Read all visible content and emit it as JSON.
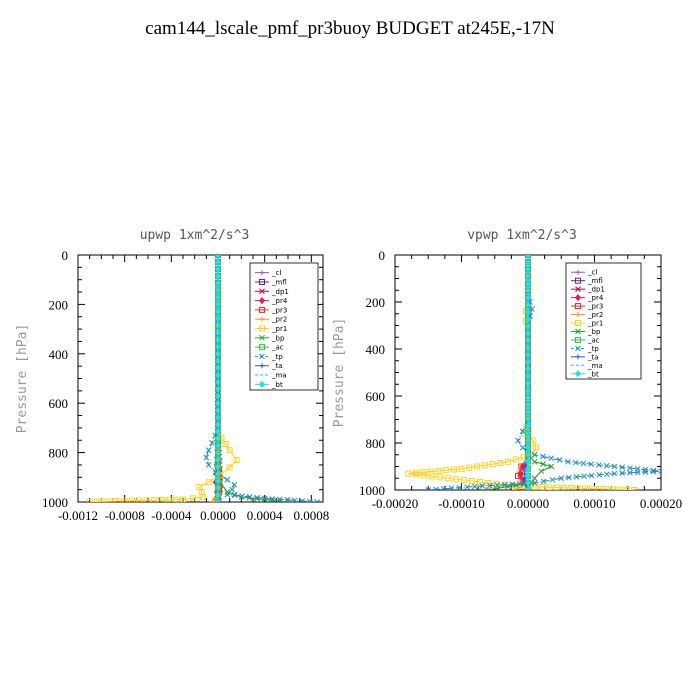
{
  "page": {
    "title": "cam144_lscale_pmf_pr3buoy  BUDGET at245E,-17N"
  },
  "chart_data": [
    {
      "type": "line",
      "title": "upwp   1xm^2/s^3",
      "ylabel": "Pressure [hPa]",
      "xlabel": "",
      "xlim": [
        -0.0012,
        0.0009
      ],
      "ylim": [
        1000,
        0
      ],
      "xticks": [
        -0.0012,
        -0.0008,
        -0.0004,
        0.0,
        0.0004,
        0.0008
      ],
      "xtick_labels": [
        "-0.0012",
        "-0.0008",
        "-0.0004",
        "0.0000",
        "0.0004",
        "0.0008"
      ],
      "yticks": [
        0,
        200,
        400,
        600,
        800,
        1000
      ],
      "ytick_labels": [
        "0",
        "200",
        "400",
        "600",
        "800",
        "1000"
      ],
      "legend_position": "top-right",
      "series": [
        {
          "name": "_cl",
          "color": "#9b4fc7",
          "marker": "+",
          "dash": "",
          "pressure": [
            0,
            1000
          ],
          "values": [
            0,
            0
          ]
        },
        {
          "name": "_mfl",
          "color": "#6b1f7f",
          "marker": "s",
          "dash": "",
          "pressure": [
            0,
            1000
          ],
          "values": [
            0,
            0
          ]
        },
        {
          "name": "_dp1",
          "color": "#c0004a",
          "marker": "x",
          "dash": "",
          "pressure": [
            0,
            700,
            800,
            900,
            950,
            980,
            1000
          ],
          "values": [
            0,
            0,
            1e-05,
            2e-05,
            2e-05,
            1e-05,
            0
          ]
        },
        {
          "name": "_pr4",
          "color": "#e0204a",
          "marker": "d",
          "dash": "",
          "pressure": [
            0,
            700,
            850,
            920,
            960,
            1000
          ],
          "values": [
            0,
            0,
            -1e-05,
            -2e-05,
            -1e-05,
            0
          ]
        },
        {
          "name": "_pr3",
          "color": "#ff2020",
          "marker": "s",
          "dash": "",
          "pressure": [
            0,
            800,
            900,
            960,
            1000
          ],
          "values": [
            0,
            0,
            1e-05,
            1e-05,
            0
          ]
        },
        {
          "name": "_pr2",
          "color": "#ff8c1a",
          "marker": "+",
          "dash": "",
          "pressure": [
            0,
            960,
            985,
            1000
          ],
          "values": [
            0,
            0,
            -3e-05,
            -5e-05
          ]
        },
        {
          "name": "_pr1",
          "color": "#ffd21f",
          "marker": "s",
          "dash": "",
          "pressure": [
            0,
            700,
            740,
            790,
            830,
            860,
            890,
            920,
            940,
            960,
            980,
            990,
            995,
            1000
          ],
          "values": [
            0,
            0,
            3e-05,
            0.0001,
            0.00016,
            0.0001,
            2e-05,
            -8e-05,
            -0.00016,
            -0.00014,
            -0.00013,
            -0.0003,
            -0.0008,
            -0.0011
          ]
        },
        {
          "name": "_bp",
          "color": "#2ca02c",
          "marker": "x",
          "dash": "",
          "pressure": [
            0,
            800,
            850,
            880,
            920,
            960,
            980,
            990,
            1000
          ],
          "values": [
            0,
            0,
            -1e-05,
            -2e-05,
            2e-05,
            8e-05,
            0.0002,
            0.0004,
            0.0006
          ]
        },
        {
          "name": "_ac",
          "color": "#36c236",
          "marker": "s",
          "dash": "",
          "pressure": [
            0,
            1000
          ],
          "values": [
            0,
            0
          ]
        },
        {
          "name": "_tp",
          "color": "#1f8fbf",
          "marker": "x",
          "dash": "6,2,1,2",
          "pressure": [
            0,
            700,
            760,
            790,
            820,
            850,
            880,
            910,
            930,
            950,
            970,
            985,
            1000
          ],
          "values": [
            0,
            0,
            -5e-05,
            -8e-05,
            -0.0001,
            -8e-05,
            -2e-05,
            8e-05,
            0.00014,
            0.00012,
            8e-05,
            0.0004,
            0.00085
          ]
        },
        {
          "name": "_ta",
          "color": "#3050e0",
          "marker": "+",
          "dash": "",
          "pressure": [
            0,
            1000
          ],
          "values": [
            0,
            0
          ]
        },
        {
          "name": "_ma",
          "color": "#3ab0ff",
          "marker": "",
          "dash": "4,3",
          "pressure": [
            0,
            1000
          ],
          "values": [
            0,
            0
          ]
        },
        {
          "name": "_bt",
          "color": "#20e0f0",
          "marker": "d",
          "dash": "",
          "pressure": [
            0,
            1000
          ],
          "values": [
            0,
            0
          ]
        }
      ]
    },
    {
      "type": "line",
      "title": "vpwp   1xm^2/s^3",
      "ylabel": "Pressure [hPa]",
      "xlabel": "",
      "xlim": [
        -0.0002,
        0.0002
      ],
      "ylim": [
        1000,
        0
      ],
      "xticks": [
        -0.0002,
        -0.0001,
        0.0,
        0.0001,
        0.0002
      ],
      "xtick_labels": [
        "-0.00020",
        "-0.00010",
        "0.00000",
        "0.00010",
        "0.00020"
      ],
      "yticks": [
        0,
        200,
        400,
        600,
        800,
        1000
      ],
      "ytick_labels": [
        "0",
        "200",
        "400",
        "600",
        "800",
        "1000"
      ],
      "legend_position": "top-right",
      "series": [
        {
          "name": "_cl",
          "color": "#9b4fc7",
          "marker": "+",
          "dash": "",
          "pressure": [
            0,
            1000
          ],
          "values": [
            0,
            0
          ]
        },
        {
          "name": "_mfl",
          "color": "#6b1f7f",
          "marker": "s",
          "dash": "",
          "pressure": [
            0,
            1000
          ],
          "values": [
            0,
            0
          ]
        },
        {
          "name": "_dp1",
          "color": "#c0004a",
          "marker": "x",
          "dash": "",
          "pressure": [
            0,
            850,
            900,
            940,
            970,
            1000
          ],
          "values": [
            0,
            0,
            -5e-06,
            -1e-05,
            -5e-06,
            0
          ]
        },
        {
          "name": "_pr4",
          "color": "#e0204a",
          "marker": "d",
          "dash": "",
          "pressure": [
            0,
            850,
            900,
            930,
            960,
            1000
          ],
          "values": [
            0,
            0,
            -8e-06,
            -1.2e-05,
            -6e-06,
            0
          ]
        },
        {
          "name": "_pr3",
          "color": "#ff2020",
          "marker": "s",
          "dash": "",
          "pressure": [
            0,
            860,
            900,
            940,
            960,
            1000
          ],
          "values": [
            0,
            0,
            -1e-05,
            -1.5e-05,
            -8e-06,
            0
          ]
        },
        {
          "name": "_pr2",
          "color": "#ff8c1a",
          "marker": "+",
          "dash": "",
          "pressure": [
            0,
            960,
            985,
            1000
          ],
          "values": [
            0,
            0,
            -1e-05,
            -2e-05
          ]
        },
        {
          "name": "_pr1",
          "color": "#ffd21f",
          "marker": "s",
          "dash": "",
          "pressure": [
            0,
            200,
            240,
            260,
            280,
            300,
            700,
            760,
            790,
            820,
            850,
            880,
            910,
            930,
            950,
            970,
            985,
            1000
          ],
          "values": [
            0,
            0,
            -3e-06,
            2e-06,
            -3e-06,
            0,
            0,
            -5e-06,
            8e-06,
            1.2e-05,
            5e-06,
            -3e-05,
            -0.0001,
            -0.00018,
            -0.00012,
            -6e-05,
            -1e-05,
            0.00016
          ]
        },
        {
          "name": "_bp",
          "color": "#2ca02c",
          "marker": "x",
          "dash": "",
          "pressure": [
            0,
            850,
            880,
            900,
            920,
            950,
            970,
            985,
            1000
          ],
          "values": [
            0,
            0,
            1e-05,
            3.5e-05,
            2e-05,
            1e-05,
            5e-06,
            -3e-05,
            -6e-05
          ]
        },
        {
          "name": "_ac",
          "color": "#36c236",
          "marker": "s",
          "dash": "",
          "pressure": [
            0,
            1000
          ],
          "values": [
            0,
            0
          ]
        },
        {
          "name": "_tp",
          "color": "#1f8fbf",
          "marker": "x",
          "dash": "6,2,1,2",
          "pressure": [
            0,
            180,
            200,
            230,
            260,
            300,
            700,
            750,
            790,
            820,
            850,
            880,
            900,
            920,
            930,
            950,
            970,
            985,
            1000
          ],
          "values": [
            0,
            0,
            3e-06,
            6e-06,
            3e-06,
            0,
            0,
            -8e-06,
            -1.5e-05,
            -8e-06,
            1e-05,
            6e-05,
            0.00013,
            0.0002,
            0.00013,
            5e-05,
            1e-05,
            -8e-05,
            -0.00015
          ]
        },
        {
          "name": "_ta",
          "color": "#3050e0",
          "marker": "+",
          "dash": "",
          "pressure": [
            0,
            850,
            900,
            950,
            1000
          ],
          "values": [
            0,
            0,
            -4e-06,
            -6e-06,
            0
          ]
        },
        {
          "name": "_ma",
          "color": "#3ab0ff",
          "marker": "",
          "dash": "4,3",
          "pressure": [
            0,
            1000
          ],
          "values": [
            0,
            0
          ]
        },
        {
          "name": "_bt",
          "color": "#20e0f0",
          "marker": "d",
          "dash": "",
          "pressure": [
            0,
            1000
          ],
          "values": [
            0,
            0
          ]
        }
      ]
    }
  ]
}
